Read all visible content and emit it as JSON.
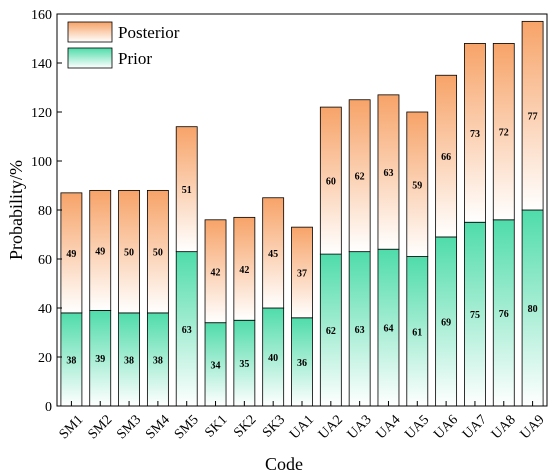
{
  "chart_data": {
    "type": "bar",
    "stacked": true,
    "xlabel": "Code",
    "ylabel": "Probability/%",
    "ylim": [
      0,
      160
    ],
    "yticks": [
      0,
      20,
      40,
      60,
      80,
      100,
      120,
      140,
      160
    ],
    "legend": {
      "placement": "top-left",
      "order": [
        "Posterior",
        "Prior"
      ]
    },
    "grid": false,
    "categories": [
      "SM1",
      "SM2",
      "SM3",
      "SM4",
      "SM5",
      "SK1",
      "SK2",
      "SK3",
      "UA1",
      "UA2",
      "UA3",
      "UA4",
      "UA5",
      "UA6",
      "UA7",
      "UA8",
      "UA9"
    ],
    "series": [
      {
        "name": "Prior",
        "color_top": "#4fdcaa",
        "color_bottom": "#ffffff",
        "values": [
          38,
          39,
          38,
          38,
          63,
          34,
          35,
          40,
          36,
          62,
          63,
          64,
          61,
          69,
          75,
          76,
          80
        ]
      },
      {
        "name": "Posterior",
        "color_top": "#f7a368",
        "color_bottom": "#ffffff",
        "values": [
          49,
          49,
          50,
          50,
          51,
          42,
          42,
          45,
          37,
          60,
          62,
          63,
          59,
          66,
          73,
          72,
          77
        ]
      }
    ]
  }
}
